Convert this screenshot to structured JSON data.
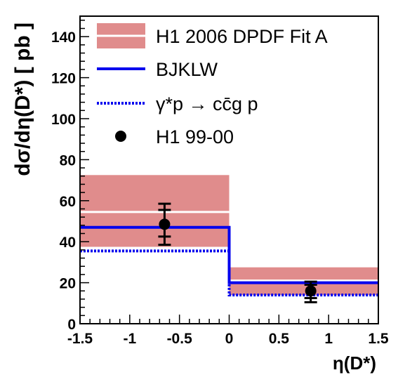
{
  "chart_data": {
    "type": "histogram",
    "xlabel": "η(D*)",
    "ylabel": "dσ/dη(D*) [ pb ]",
    "xlim": [
      -1.5,
      1.5
    ],
    "ylim": [
      0,
      150
    ],
    "x_ticks": [
      "-1.5",
      "-1",
      "-0.5",
      "0",
      "0.5",
      "1",
      "1.5"
    ],
    "y_ticks": [
      "0",
      "20",
      "40",
      "60",
      "80",
      "100",
      "120",
      "140"
    ],
    "bins": [
      [
        -1.5,
        0
      ],
      [
        0,
        1.5
      ]
    ],
    "series": [
      {
        "name": "H1 2006 DPDF Fit A",
        "style": "band",
        "color": "#e08c8c",
        "central_color": "#ffffff",
        "central": [
          54.5,
          21
        ],
        "low": [
          37.5,
          14
        ],
        "high": [
          72.5,
          27.5
        ]
      },
      {
        "name": "BJKLW",
        "style": "solid-line",
        "color": "#0000ee",
        "values": [
          47,
          20
        ]
      },
      {
        "name": "γ*p → cc̄g p",
        "style": "dotted-line",
        "color": "#0000ee",
        "values": [
          35.5,
          14
        ]
      },
      {
        "name": "H1 99-00",
        "style": "points",
        "color": "#000000",
        "points": [
          {
            "x": -0.65,
            "y": 48.5,
            "stat_low": 42.5,
            "stat_high": 55.5,
            "tot_low": 38.5,
            "tot_high": 58.5
          },
          {
            "x": 0.82,
            "y": 16,
            "stat_low": 12.5,
            "stat_high": 19,
            "tot_low": 10.5,
            "tot_high": 20.5
          }
        ]
      }
    ]
  }
}
